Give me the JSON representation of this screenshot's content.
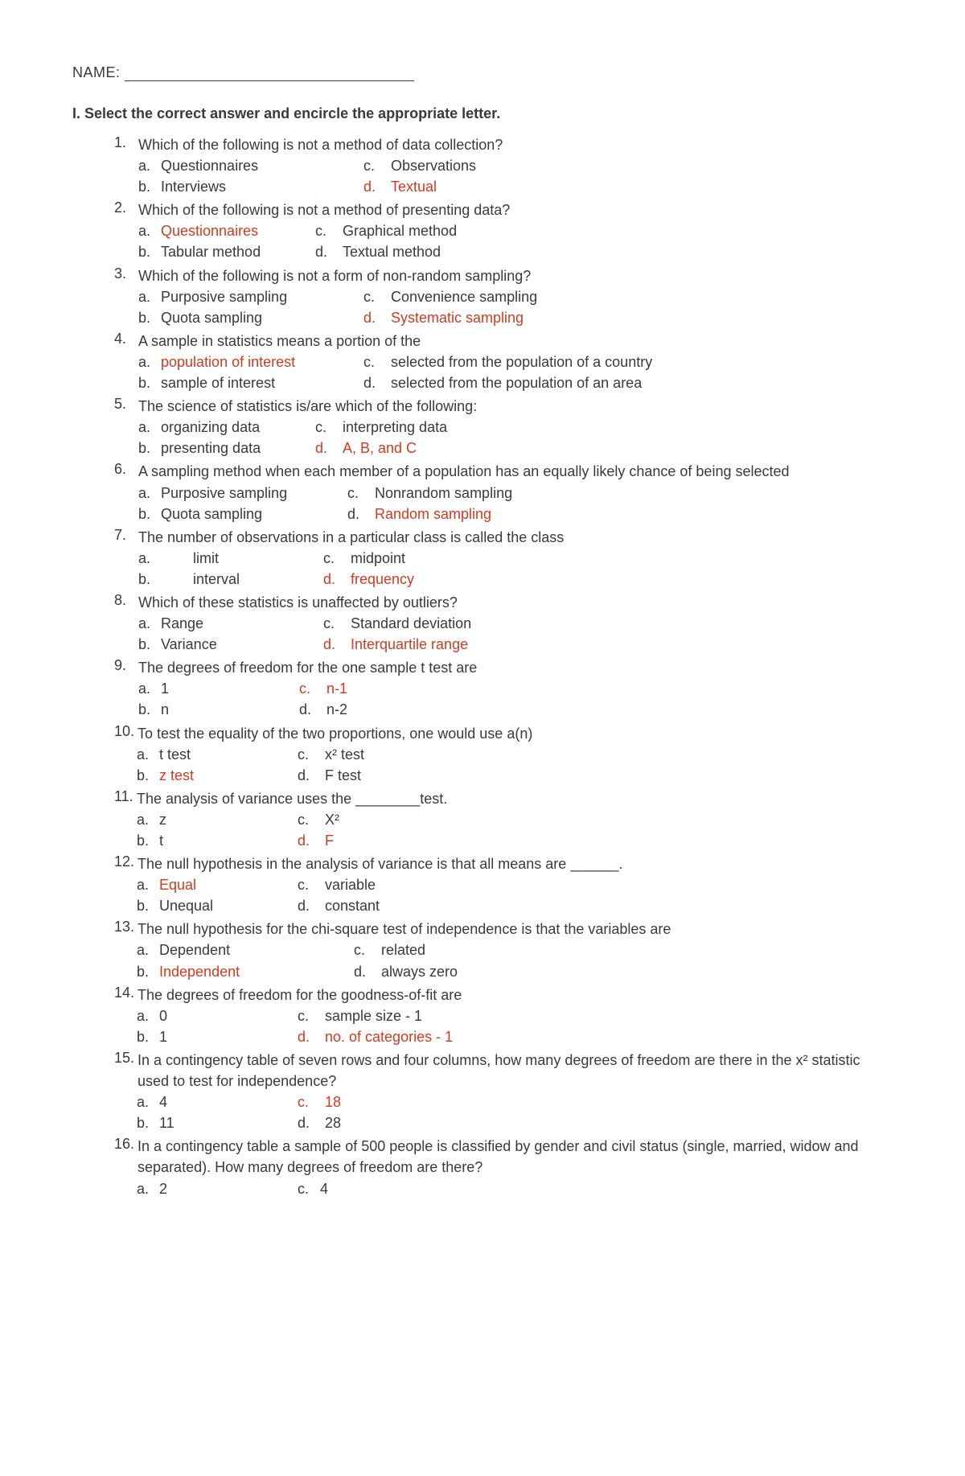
{
  "name_label": "NAME:",
  "section_title": "I.  Select the correct answer and encircle the appropriate letter.",
  "text_color": "#3a3a3a",
  "highlight_color": "#d13b1f",
  "background_color": "#ffffff",
  "font_size": 18,
  "questions": [
    {
      "num": "1.",
      "text": "Which of the following is not a method of data collection?",
      "col1_width": 280,
      "options": [
        {
          "letter": "a.",
          "text": "Questionnaires",
          "highlight": false
        },
        {
          "letter": "b.",
          "text": "Interviews",
          "highlight": false
        },
        {
          "letter": "c.",
          "text": "Observations",
          "highlight": false
        },
        {
          "letter": "d.",
          "text": "Textual",
          "highlight": true,
          "letter_highlight": true
        }
      ]
    },
    {
      "num": "2.",
      "text": "Which of the following is not a method of presenting data?",
      "col1_width": 220,
      "options": [
        {
          "letter": "a.",
          "text": "Questionnaires",
          "highlight": true
        },
        {
          "letter": "b.",
          "text": "Tabular method",
          "highlight": false
        },
        {
          "letter": "c.",
          "text": "Graphical method",
          "highlight": false
        },
        {
          "letter": "d.",
          "text": "Textual method",
          "highlight": false
        }
      ]
    },
    {
      "num": "3.",
      "text": "Which of the following is not a form of non-random sampling?",
      "col1_width": 280,
      "options": [
        {
          "letter": "a.",
          "text": "Purposive sampling",
          "highlight": false
        },
        {
          "letter": "b.",
          "text": "Quota sampling",
          "highlight": false
        },
        {
          "letter": "c.",
          "text": "Convenience sampling",
          "highlight": false
        },
        {
          "letter": "d.",
          "text": "Systematic sampling",
          "highlight": true,
          "letter_highlight": true
        }
      ]
    },
    {
      "num": "4.",
      "text": "A sample in statistics means a portion of the",
      "col1_width": 280,
      "options": [
        {
          "letter": "a.",
          "text": "population of interest",
          "highlight": true
        },
        {
          "letter": "b.",
          "text": "sample of interest",
          "highlight": false
        },
        {
          "letter": "c.",
          "text": "selected from the population of a country",
          "highlight": false
        },
        {
          "letter": "d.",
          "text": "selected from the population of an area",
          "highlight": false
        }
      ]
    },
    {
      "num": "5.",
      "text": "The science of statistics is/are which of the following:",
      "col1_width": 220,
      "options": [
        {
          "letter": "a.",
          "text": "organizing data",
          "highlight": false
        },
        {
          "letter": "b.",
          "text": "presenting data",
          "highlight": false
        },
        {
          "letter": "c.",
          "text": "interpreting data",
          "highlight": false
        },
        {
          "letter": "d.",
          "text": "A, B, and C",
          "highlight": true,
          "letter_highlight": true
        }
      ]
    },
    {
      "num": "6.",
      "text": "A sampling method when each member of a population has an equally likely chance of being selected",
      "col1_width": 260,
      "options": [
        {
          "letter": "a.",
          "text": "Purposive sampling",
          "highlight": false
        },
        {
          "letter": "b.",
          "text": "Quota sampling",
          "highlight": false
        },
        {
          "letter": "c.",
          "text": "Nonrandom sampling",
          "highlight": false
        },
        {
          "letter": "d.",
          "text": "Random sampling",
          "highlight": true
        }
      ]
    },
    {
      "num": "7.",
      "text": "The number of observations in a particular class is called the class",
      "col1_width": 230,
      "indent": 40,
      "options": [
        {
          "letter": "a.",
          "text": "limit",
          "highlight": false
        },
        {
          "letter": "b.",
          "text": "interval",
          "highlight": false
        },
        {
          "letter": "c.",
          "text": "midpoint",
          "highlight": false
        },
        {
          "letter": "d.",
          "text": "frequency",
          "highlight": true,
          "letter_highlight": true
        }
      ]
    },
    {
      "num": "8.",
      "text": "Which of these statistics is unaffected by outliers?",
      "col1_width": 230,
      "options": [
        {
          "letter": "a.",
          "text": "Range",
          "highlight": false
        },
        {
          "letter": "b.",
          "text": "Variance",
          "highlight": false
        },
        {
          "letter": "c.",
          "text": "Standard deviation",
          "highlight": false
        },
        {
          "letter": "d.",
          "text": "Interquartile range",
          "highlight": true,
          "letter_highlight": true
        }
      ]
    },
    {
      "num": "9.",
      "text": "The degrees of freedom for the one sample t test are",
      "col1_width": 200,
      "options": [
        {
          "letter": "a.",
          "text": "1",
          "highlight": false
        },
        {
          "letter": "b.",
          "text": "n",
          "highlight": false
        },
        {
          "letter": "c.",
          "text": "n-1",
          "highlight": true,
          "letter_highlight": true
        },
        {
          "letter": "d.",
          "text": "n-2",
          "highlight": false
        }
      ]
    },
    {
      "num": "10.",
      "text": "To test the equality of the two proportions, one would use a(n)",
      "col1_width": 200,
      "tight": true,
      "options": [
        {
          "letter": "a.",
          "text": "t test",
          "highlight": false
        },
        {
          "letter": "b.",
          "text": "z test",
          "highlight": true
        },
        {
          "letter": "c.",
          "text": "x² test",
          "highlight": false
        },
        {
          "letter": "d.",
          "text": "F test",
          "highlight": false
        }
      ]
    },
    {
      "num": "11.",
      "text": "The analysis of variance uses the ________test.",
      "col1_width": 200,
      "tight": true,
      "options": [
        {
          "letter": "a.",
          "text": "z",
          "highlight": false
        },
        {
          "letter": "b.",
          "text": "t",
          "highlight": false
        },
        {
          "letter": "c.",
          "text": "X²",
          "highlight": false
        },
        {
          "letter": "d.",
          "text": "F",
          "highlight": true,
          "letter_highlight": true
        }
      ]
    },
    {
      "num": "12.",
      "text": "The null hypothesis in the analysis of variance is that all means are ______.",
      "col1_width": 200,
      "tight": true,
      "options": [
        {
          "letter": "a.",
          "text": "Equal",
          "highlight": true
        },
        {
          "letter": "b.",
          "text": "Unequal",
          "highlight": false
        },
        {
          "letter": "c.",
          "text": "variable",
          "highlight": false
        },
        {
          "letter": "d.",
          "text": "constant",
          "highlight": false
        }
      ]
    },
    {
      "num": "13.",
      "text": "The null hypothesis for the chi-square test of independence is that the variables are",
      "col1_width": 270,
      "tight": true,
      "options": [
        {
          "letter": "a.",
          "text": "Dependent",
          "highlight": false
        },
        {
          "letter": "b.",
          "text": "Independent",
          "highlight": true
        },
        {
          "letter": "c.",
          "text": "related",
          "highlight": false
        },
        {
          "letter": "d.",
          "text": "always zero",
          "highlight": false
        }
      ]
    },
    {
      "num": "14.",
      "text": "The degrees of freedom for the goodness-of-fit are",
      "col1_width": 200,
      "tight": true,
      "options": [
        {
          "letter": "a.",
          "text": "0",
          "highlight": false
        },
        {
          "letter": "b.",
          "text": "1",
          "highlight": false
        },
        {
          "letter": "c.",
          "text": "sample size - 1",
          "highlight": false
        },
        {
          "letter": "d.",
          "text": "no. of categories - 1",
          "highlight": true,
          "letter_highlight": true
        }
      ]
    },
    {
      "num": "15.",
      "text": "In a contingency table of seven rows and four columns, how many degrees of freedom are there in the x² statistic used to test for independence?",
      "col1_width": 200,
      "tight": true,
      "options": [
        {
          "letter": "a.",
          "text": "4",
          "highlight": false
        },
        {
          "letter": "b.",
          "text": "11",
          "highlight": false
        },
        {
          "letter": "c.",
          "text": "18",
          "highlight": true,
          "letter_highlight": true
        },
        {
          "letter": "d.",
          "text": "28",
          "highlight": false
        }
      ]
    },
    {
      "num": "16.",
      "text": "In a contingency table a sample of 500 people is classified by gender and civil status (single, married, widow and separated). How many degrees of freedom are there?",
      "col1_width": 200,
      "tight": true,
      "partial": true,
      "options": [
        {
          "letter": "a.",
          "text": "2",
          "highlight": false
        },
        {
          "letter": "c.",
          "text": "4",
          "highlight": false
        }
      ]
    }
  ]
}
